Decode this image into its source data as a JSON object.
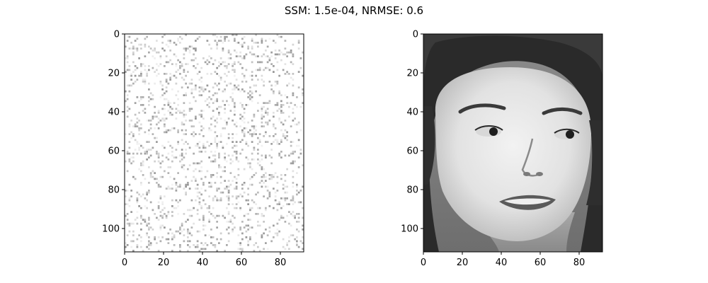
{
  "figure": {
    "title": "SSM: 1.5e-04, NRMSE: 0.6"
  },
  "chart_data": [
    {
      "type": "heatmap",
      "description_kind": "image",
      "title": "",
      "xlabel": "",
      "ylabel": "",
      "xlim": [
        0,
        92
      ],
      "ylim": [
        112,
        0
      ],
      "xticks": [
        0,
        20,
        40,
        60,
        80
      ],
      "yticks": [
        0,
        20,
        40,
        60,
        80,
        100
      ],
      "colormap": "gray",
      "content": "sparse-noise"
    },
    {
      "type": "heatmap",
      "description_kind": "image",
      "title": "",
      "xlabel": "",
      "ylabel": "",
      "xlim": [
        0,
        92
      ],
      "ylim": [
        112,
        0
      ],
      "xticks": [
        0,
        20,
        40,
        60,
        80
      ],
      "yticks": [
        0,
        20,
        40,
        60,
        80,
        100
      ],
      "colormap": "gray",
      "content": "face-photograph"
    }
  ]
}
